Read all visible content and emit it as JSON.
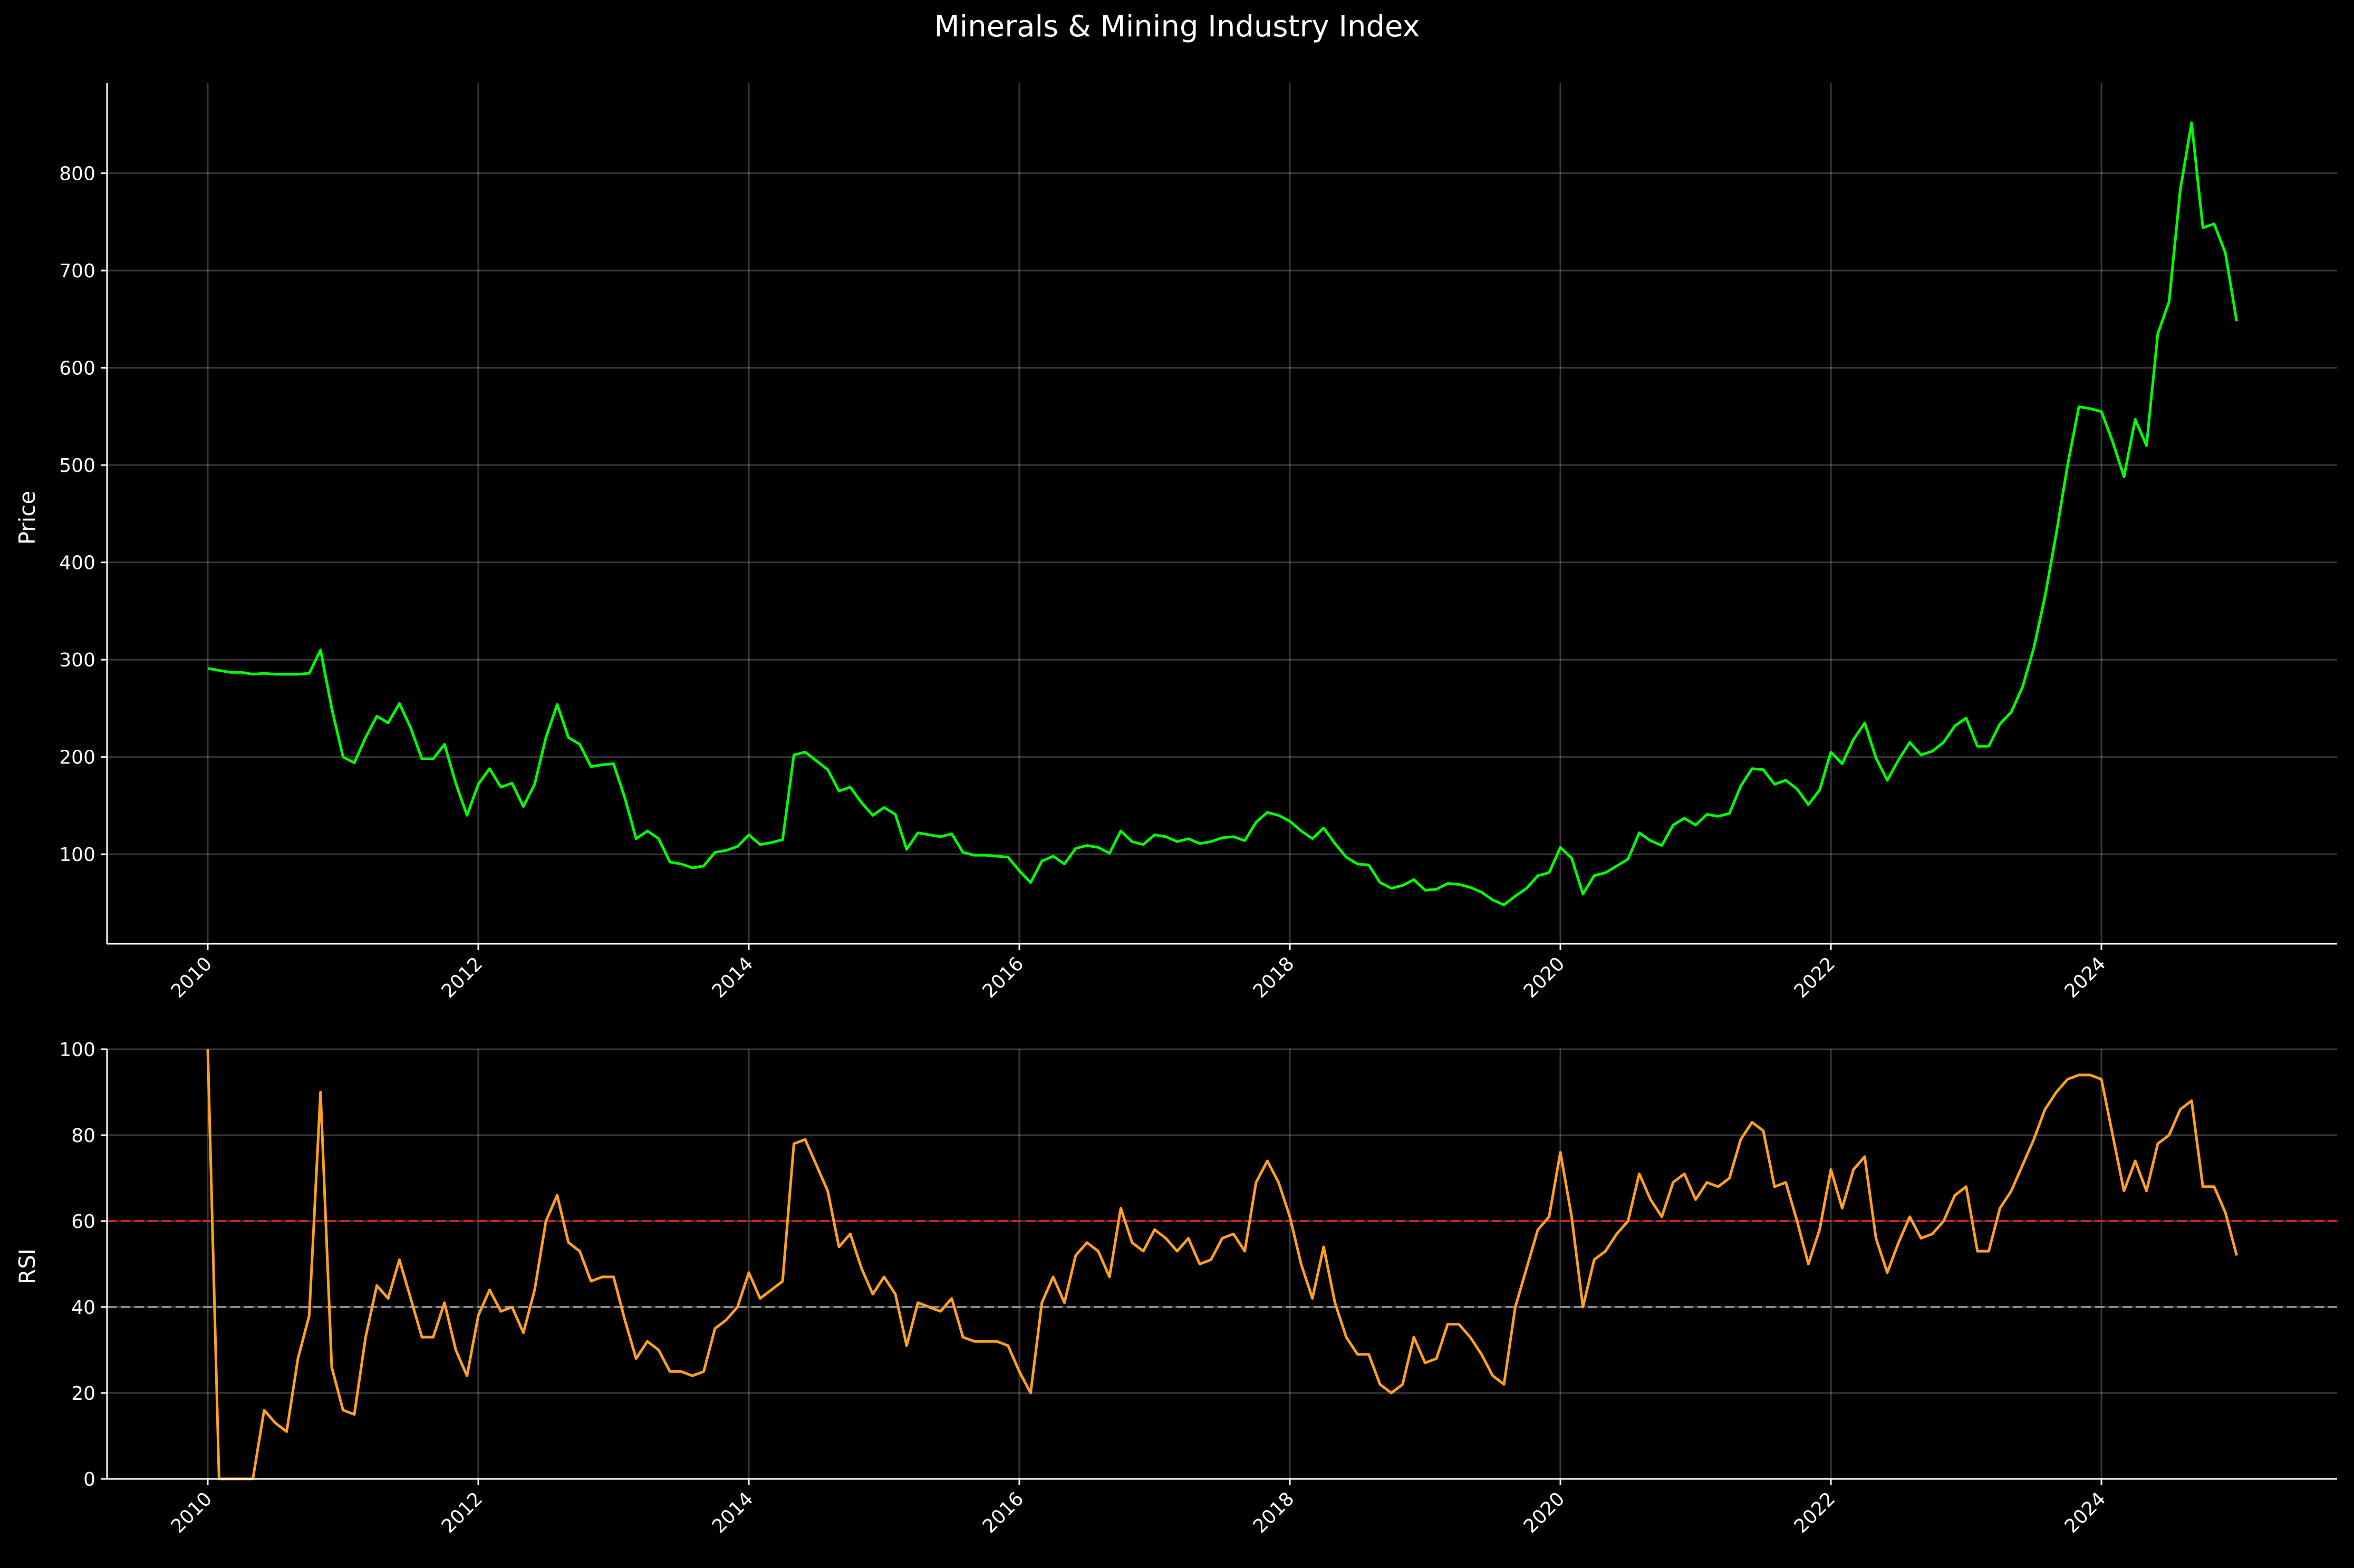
{
  "chart_data": {
    "title": "Minerals & Mining Industry Index",
    "x_tick_labels": [
      "2010",
      "2012",
      "2014",
      "2016",
      "2018",
      "2020",
      "2022",
      "2024"
    ],
    "panels": [
      {
        "type": "line",
        "ylabel": "Price",
        "ylim": [
          8,
          893
        ],
        "y_ticks": [
          100,
          200,
          300,
          400,
          500,
          600,
          700,
          800
        ],
        "grid": true,
        "series": [
          {
            "color": "#00ff00",
            "values": [
              291,
              289,
              287,
              287,
              285,
              286,
              285,
              285,
              285,
              286,
              310,
              250,
              200,
              194,
              220,
              242,
              235,
              255,
              230,
              198,
              198,
              213,
              173,
              140,
              172,
              188,
              169,
              173,
              149,
              172,
              220,
              254,
              220,
              213,
              190,
              192,
              193,
              158,
              116,
              124,
              116,
              92,
              90,
              86,
              88,
              102,
              104,
              108,
              120,
              110,
              112,
              115,
              202,
              205,
              196,
              187,
              165,
              169,
              153,
              140,
              148,
              141,
              105,
              122,
              120,
              118,
              121,
              102,
              99,
              99,
              98,
              97,
              83,
              71,
              93,
              98,
              90,
              106,
              109,
              107,
              101,
              124,
              113,
              110,
              120,
              118,
              113,
              116,
              111,
              113,
              117,
              118,
              114,
              133,
              143,
              140,
              134,
              124,
              116,
              127,
              111,
              97,
              90,
              89,
              71,
              65,
              68,
              74,
              63,
              64,
              70,
              69,
              66,
              61,
              53,
              48,
              57,
              65,
              78,
              81,
              107,
              96,
              59,
              78,
              81,
              88,
              95,
              122,
              114,
              109,
              130,
              137,
              130,
              141,
              139,
              142,
              170,
              188,
              187,
              172,
              176,
              167,
              151,
              166,
              205,
              193,
              218,
              235,
              199,
              176,
              197,
              215,
              202,
              206,
              215,
              232,
              240,
              211,
              211,
              234,
              246,
              272,
              312,
              365,
              430,
              500,
              560,
              558,
              555,
              524,
              488,
              547,
              520,
              635,
              668,
              783,
              852,
              744,
              748,
              718,
              648
            ]
          }
        ]
      },
      {
        "type": "line",
        "ylabel": "RSI",
        "ylim": [
          0,
          100
        ],
        "y_ticks": [
          0,
          20,
          40,
          60,
          80,
          100
        ],
        "grid": true,
        "reference_lines": [
          {
            "y": 60,
            "color": "#cc2222",
            "style": "dashed"
          },
          {
            "y": 40,
            "color": "#888888",
            "style": "dashed"
          }
        ],
        "series": [
          {
            "color": "#ffa020",
            "values": [
              100,
              0,
              0,
              0,
              0,
              16,
              13,
              11,
              28,
              38,
              90,
              26,
              16,
              15,
              33,
              45,
              42,
              51,
              42,
              33,
              33,
              41,
              30,
              24,
              38,
              44,
              39,
              40,
              34,
              44,
              60,
              66,
              55,
              53,
              46,
              47,
              47,
              37,
              28,
              32,
              30,
              25,
              25,
              24,
              25,
              35,
              37,
              40,
              48,
              42,
              44,
              46,
              78,
              79,
              73,
              67,
              54,
              57,
              49,
              43,
              47,
              43,
              31,
              41,
              40,
              39,
              42,
              33,
              32,
              32,
              32,
              31,
              25,
              20,
              41,
              47,
              41,
              52,
              55,
              53,
              47,
              63,
              55,
              53,
              58,
              56,
              53,
              56,
              50,
              51,
              56,
              57,
              53,
              69,
              74,
              69,
              61,
              50,
              42,
              54,
              41,
              33,
              29,
              29,
              22,
              20,
              22,
              33,
              27,
              28,
              36,
              36,
              33,
              29,
              24,
              22,
              40,
              49,
              58,
              61,
              76,
              61,
              40,
              51,
              53,
              57,
              60,
              71,
              65,
              61,
              69,
              71,
              65,
              69,
              68,
              70,
              79,
              83,
              81,
              68,
              69,
              60,
              50,
              58,
              72,
              63,
              72,
              75,
              56,
              48,
              55,
              61,
              56,
              57,
              60,
              66,
              68,
              53,
              53,
              63,
              67,
              73,
              79,
              86,
              90,
              93,
              94,
              94,
              93,
              80,
              67,
              74,
              67,
              78,
              80,
              86,
              88,
              68,
              68,
              62,
              52
            ]
          }
        ]
      }
    ]
  }
}
